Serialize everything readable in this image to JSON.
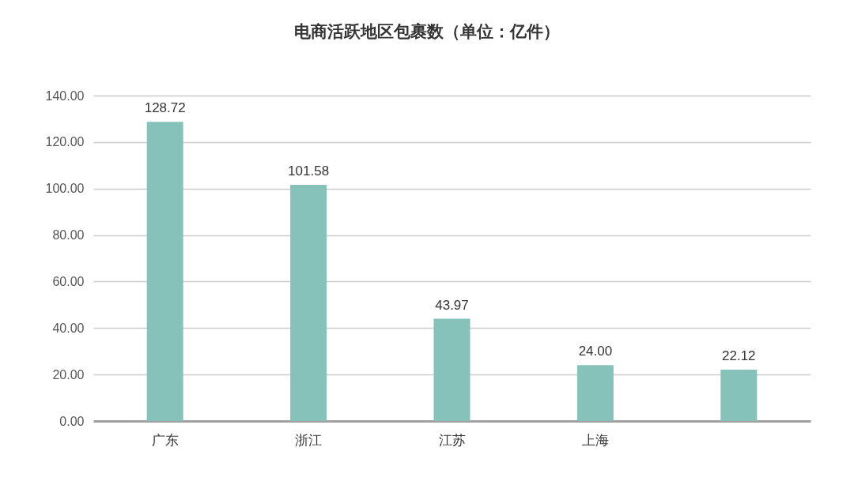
{
  "chart_data": {
    "type": "bar",
    "title": "电商活跃地区包裹数（单位：亿件）",
    "categories": [
      "广东",
      "浙江",
      "江苏",
      "上海",
      null
    ],
    "values": [
      128.72,
      101.58,
      43.97,
      24.0,
      22.12
    ],
    "value_labels": [
      "128.72",
      "101.58",
      "43.97",
      "24.00",
      "22.12"
    ],
    "color": "#86c2b9",
    "ylim": [
      0,
      140
    ],
    "yticks": [
      {
        "value": 0,
        "label": "0.00"
      },
      {
        "value": 20,
        "label": "20.00"
      },
      {
        "value": 40,
        "label": "40.00"
      },
      {
        "value": 60,
        "label": "60.00"
      },
      {
        "value": 80,
        "label": "80.00"
      },
      {
        "value": 100,
        "label": "100.00"
      },
      {
        "value": 120,
        "label": "120.00"
      },
      {
        "value": 140,
        "label": "140.00"
      }
    ],
    "grid": "y"
  }
}
